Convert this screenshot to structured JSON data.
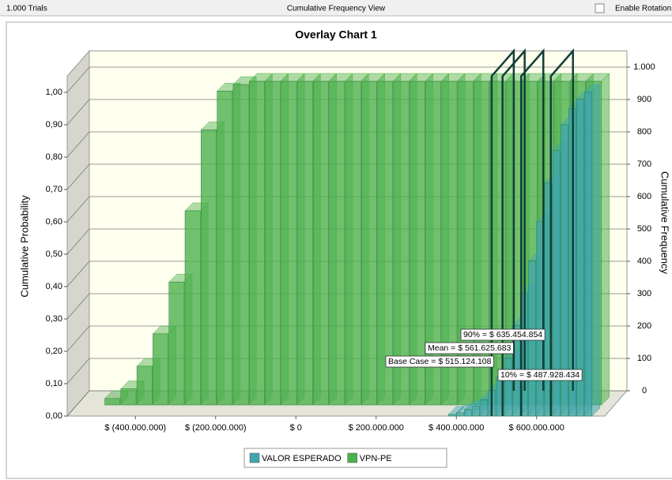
{
  "header": {
    "left": "1.000 Trials",
    "center": "Cumulative Frequency View",
    "checkbox": "Enable Rotation"
  },
  "chart_data": {
    "type": "histogram",
    "title": "Overlay Chart 1",
    "ylabel": "Cumulative Probability",
    "y2label": "Cumulative Frequency",
    "xlim": [
      -570000000,
      770000000
    ],
    "xticks": [
      {
        "value": -400000000,
        "label": "$ (400.000.000)"
      },
      {
        "value": -200000000,
        "label": "$ (200.000.000)"
      },
      {
        "value": 0,
        "label": "$ 0"
      },
      {
        "value": 200000000,
        "label": "$ 200.000.000"
      },
      {
        "value": 400000000,
        "label": "$ 400.000.000"
      },
      {
        "value": 600000000,
        "label": "$ 600.000.000"
      }
    ],
    "ylim": [
      0,
      1.05
    ],
    "yticks": [
      {
        "value": 0,
        "label": "0,00"
      },
      {
        "value": 0.1,
        "label": "0,10"
      },
      {
        "value": 0.2,
        "label": "0,20"
      },
      {
        "value": 0.3,
        "label": "0,30"
      },
      {
        "value": 0.4,
        "label": "0,40"
      },
      {
        "value": 0.5,
        "label": "0,50"
      },
      {
        "value": 0.6,
        "label": "0,60"
      },
      {
        "value": 0.7,
        "label": "0,70"
      },
      {
        "value": 0.8,
        "label": "0,80"
      },
      {
        "value": 0.9,
        "label": "0,90"
      },
      {
        "value": 1.0,
        "label": "1,00"
      }
    ],
    "y2lim": [
      0,
      1050
    ],
    "y2ticks": [
      0,
      100,
      200,
      300,
      400,
      500,
      600,
      700,
      800,
      900,
      {
        "value": 1000,
        "label": "1.000"
      }
    ],
    "grid": true,
    "series": [
      {
        "name": "VPN-PE",
        "color": "#4cb04c",
        "bins": [
          -500000000,
          -460000000,
          -420000000,
          -380000000,
          -340000000,
          -300000000,
          -260000000,
          -220000000,
          -180000000,
          -140000000,
          -100000000,
          -60000000,
          -20000000,
          20000000,
          60000000,
          100000000,
          140000000,
          180000000,
          220000000,
          260000000,
          300000000,
          340000000,
          380000000,
          420000000,
          460000000,
          500000000,
          540000000,
          580000000,
          620000000,
          660000000,
          700000000,
          740000000
        ],
        "values": [
          0.02,
          0.05,
          0.12,
          0.22,
          0.38,
          0.6,
          0.85,
          0.97,
          0.99,
          1,
          1,
          1,
          1,
          1,
          1,
          1,
          1,
          1,
          1,
          1,
          1,
          1,
          1,
          1,
          1,
          1,
          1,
          1,
          1,
          1,
          1
        ]
      },
      {
        "name": "VALOR ESPERADO",
        "color": "#3fa6ae",
        "bins": [
          380000000,
          400000000,
          420000000,
          440000000,
          460000000,
          480000000,
          500000000,
          520000000,
          540000000,
          560000000,
          580000000,
          600000000,
          620000000,
          640000000,
          660000000,
          680000000,
          700000000,
          720000000,
          740000000
        ],
        "values": [
          0.005,
          0.01,
          0.02,
          0.03,
          0.05,
          0.08,
          0.12,
          0.18,
          0.28,
          0.38,
          0.48,
          0.6,
          0.72,
          0.82,
          0.9,
          0.95,
          0.98,
          1.0
        ]
      }
    ],
    "markers": [
      {
        "value": 635454854,
        "label": "90% = $ 635.454.854"
      },
      {
        "value": 561625683,
        "label": "Mean = $ 561.625.683"
      },
      {
        "value": 515124108,
        "label": "Base Case = $ 515.124.108"
      },
      {
        "value": 487928434,
        "label": "10% = $ 487.928.434"
      }
    ],
    "legend": "bottom"
  }
}
